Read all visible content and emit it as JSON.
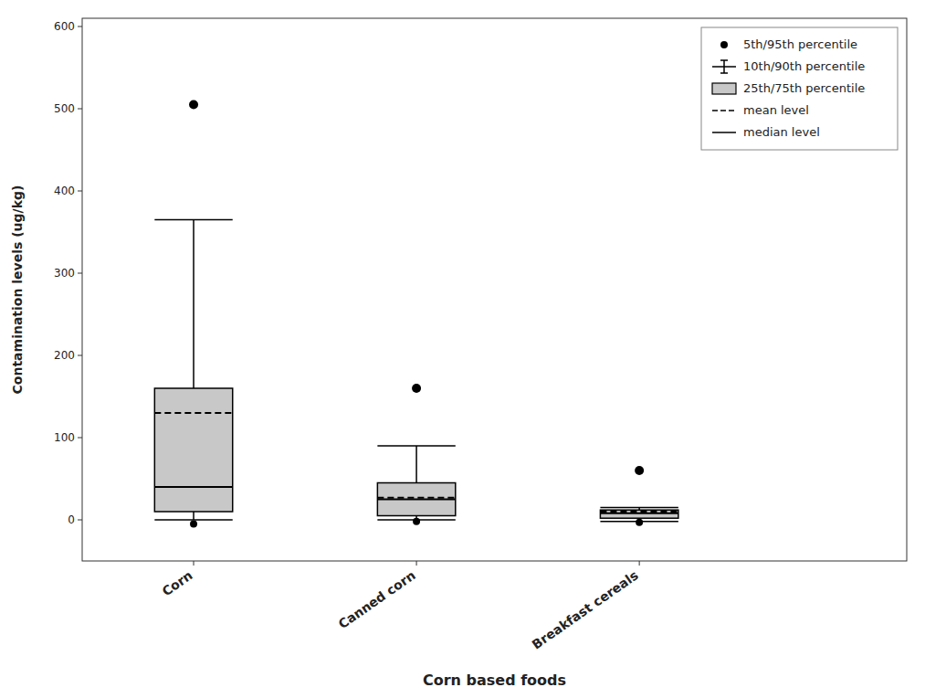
{
  "chart_data": {
    "type": "box",
    "xlabel": "Corn based foods",
    "ylabel": "Contamination levels (ug/kg)",
    "categories": [
      "Corn",
      "Canned corn",
      "Breakfast cereals"
    ],
    "ylim": [
      -50,
      610
    ],
    "yticks": [
      0,
      100,
      200,
      300,
      400,
      500,
      600
    ],
    "legend": "upper right",
    "series": [
      {
        "name": "5th/95th percentile",
        "type": "points",
        "marker": "circle",
        "color": "#000000",
        "low": [
          -5,
          -2,
          -3
        ],
        "high": [
          505,
          160,
          60
        ]
      },
      {
        "name": "10th/90th percentile",
        "type": "whisker",
        "color": "#000000",
        "low": [
          0,
          0,
          -2
        ],
        "high": [
          365,
          90,
          15
        ]
      },
      {
        "name": "25th/75th percentile",
        "type": "box",
        "color": "#c8c8c8",
        "low": [
          10,
          5,
          2
        ],
        "high": [
          160,
          45,
          12
        ]
      },
      {
        "name": "mean level",
        "type": "line",
        "line_style": "dashed",
        "color": "#000000",
        "values": [
          130,
          27,
          10
        ]
      },
      {
        "name": "median level",
        "type": "line",
        "line_style": "solid",
        "color": "#000000",
        "values": [
          40,
          25,
          8
        ]
      }
    ]
  }
}
